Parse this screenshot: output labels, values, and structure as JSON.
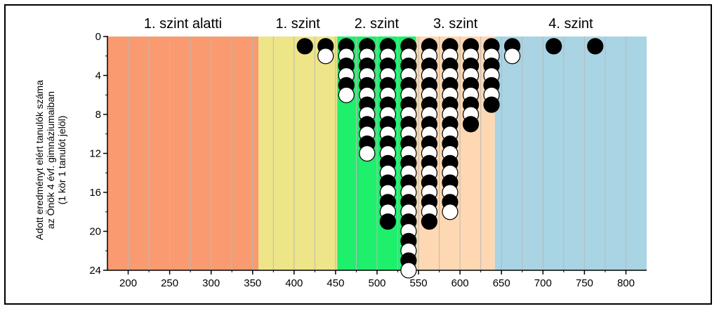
{
  "chart_data": {
    "type": "scatter",
    "y_axis_label": [
      "Adott eredményt elért tanulók száma",
      "az Önök 4 évf. gimnáziumaiban",
      "(1 kör 1 tanulót jelöl)"
    ],
    "xlim": [
      175,
      825
    ],
    "ylim": [
      0,
      24
    ],
    "y_inverted": true,
    "x_ticks": [
      200,
      250,
      300,
      350,
      400,
      450,
      500,
      550,
      600,
      650,
      700,
      750,
      800
    ],
    "y_ticks": [
      0,
      4,
      8,
      12,
      16,
      20,
      24
    ],
    "grid": "vertical",
    "bands": [
      {
        "label": "1. szint alatti",
        "from": 175,
        "to": 357,
        "color": "#f99a70"
      },
      {
        "label": "1. szint",
        "from": 357,
        "to": 452,
        "color": "#ede587"
      },
      {
        "label": "2. szint",
        "from": 452,
        "to": 547,
        "color": "#1ef06c"
      },
      {
        "label": "3. szint",
        "from": 547,
        "to": 642,
        "color": "#fdd8b2"
      },
      {
        "label": "4. szint",
        "from": 642,
        "to": 825,
        "color": "#a8d4e4"
      }
    ],
    "columns": [
      {
        "x": 413,
        "count": 1
      },
      {
        "x": 438,
        "count": 2
      },
      {
        "x": 463,
        "count": 6
      },
      {
        "x": 488,
        "count": 12
      },
      {
        "x": 513,
        "count": 19
      },
      {
        "x": 538,
        "count": 24
      },
      {
        "x": 563,
        "count": 19
      },
      {
        "x": 588,
        "count": 18
      },
      {
        "x": 613,
        "count": 9
      },
      {
        "x": 638,
        "count": 7
      },
      {
        "x": 663,
        "count": 2
      },
      {
        "x": 713,
        "count": 1
      },
      {
        "x": 763,
        "count": 1
      }
    ]
  }
}
